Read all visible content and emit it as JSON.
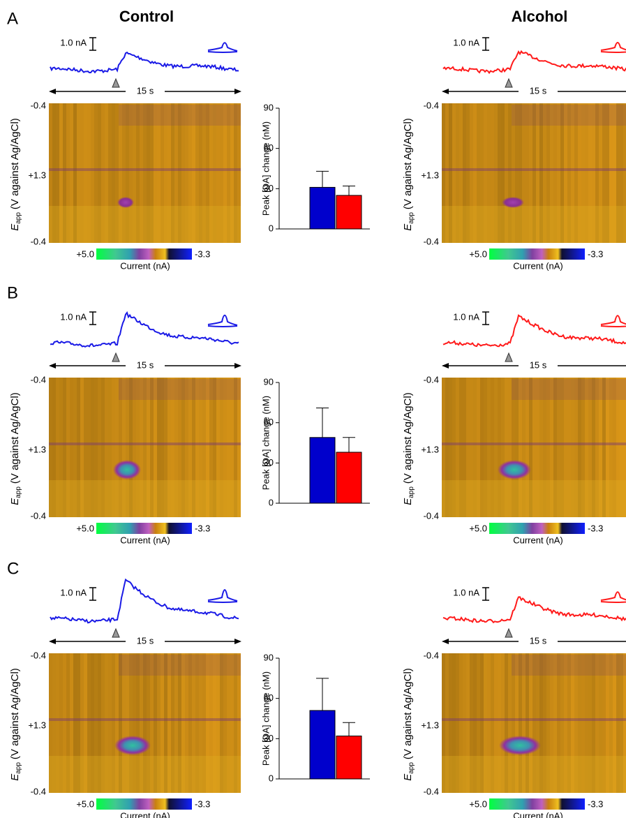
{
  "column_titles": [
    "Control",
    "Alcohol"
  ],
  "panels": [
    {
      "label": "A"
    },
    {
      "label": "B"
    },
    {
      "label": "C"
    }
  ],
  "scale_bar": "1.0 nA",
  "time_label": "15 s",
  "potential_axis": {
    "label_main": "E",
    "label_sub": "app",
    "label_rest": "(V against Ag/AgCl)",
    "ticks": [
      "-0.4",
      "+1.3",
      "-0.4"
    ]
  },
  "colorbar": {
    "max_label": "+5.0",
    "min_label": "-3.3",
    "label": "Current (nA)"
  },
  "chart_data": [
    {
      "type": "bar",
      "ylabel": "Peak [DA] change (nM)",
      "values": [
        31,
        25
      ],
      "errors": [
        12,
        7
      ],
      "colors": [
        "#0000cc",
        "#ff0000"
      ],
      "ylim": [
        0,
        90
      ],
      "yticks": [
        0,
        30,
        60,
        90
      ]
    },
    {
      "type": "bar",
      "ylabel": "Peak [DA] change (nM)",
      "values": [
        49,
        38
      ],
      "errors": [
        22,
        11
      ],
      "colors": [
        "#0000cc",
        "#ff0000"
      ],
      "ylim": [
        0,
        90
      ],
      "yticks": [
        0,
        30,
        60,
        90
      ]
    },
    {
      "type": "bar",
      "ylabel": "Peak [DA] change (nM)",
      "values": [
        51,
        32
      ],
      "errors": [
        24,
        10
      ],
      "colors": [
        "#0000cc",
        "#ff0000"
      ],
      "ylim": [
        0,
        90
      ],
      "yticks": [
        0,
        30,
        60,
        90
      ]
    }
  ]
}
